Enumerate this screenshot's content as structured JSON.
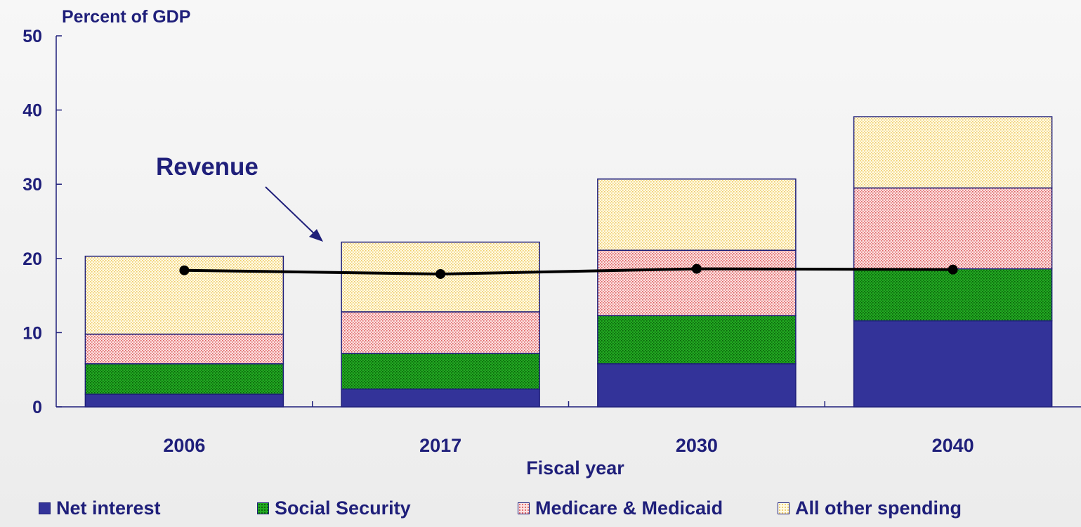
{
  "chart_data": {
    "type": "bar",
    "stacked": true,
    "ylabel": "Percent of GDP",
    "xlabel": "Fiscal year",
    "ylim": [
      0,
      50
    ],
    "yticks": [
      0,
      10,
      20,
      30,
      40,
      50
    ],
    "categories": [
      "2006",
      "2017",
      "2030",
      "2040"
    ],
    "series": [
      {
        "name": "Net interest",
        "color": "#333399",
        "pattern": "solid",
        "values": [
          1.7,
          2.4,
          5.8,
          11.6
        ]
      },
      {
        "name": "Social Security",
        "color": "#119911",
        "pattern": "dots-green",
        "values": [
          4.1,
          4.8,
          6.5,
          7.0
        ]
      },
      {
        "name": "Medicare & Medicaid",
        "color": "#f4a0a0",
        "pattern": "dots-red",
        "values": [
          4.0,
          5.6,
          8.8,
          10.9
        ]
      },
      {
        "name": "All other spending",
        "color": "#f8e6a0",
        "pattern": "dots-yellow",
        "values": [
          10.5,
          9.4,
          9.6,
          9.6
        ]
      }
    ],
    "line": {
      "values": [
        18.4,
        17.9,
        18.6,
        18.5
      ]
    },
    "annotation": {
      "text": "Revenue"
    }
  }
}
